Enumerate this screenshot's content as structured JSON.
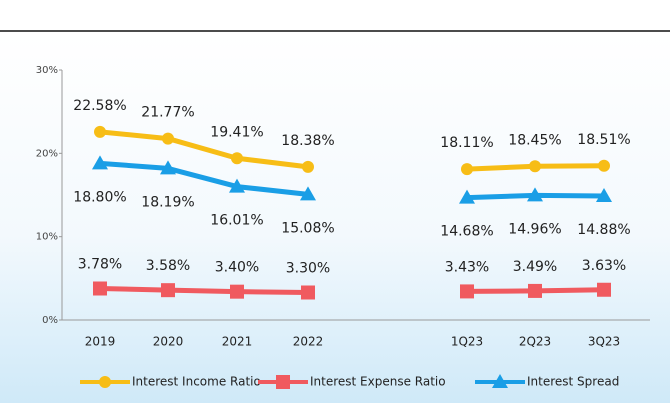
{
  "chart_data": {
    "type": "line",
    "categories": [
      "2019",
      "2020",
      "2021",
      "2022",
      null,
      "1Q23",
      "2Q23",
      "3Q23"
    ],
    "series": [
      {
        "name": "Interest Income Ratio",
        "color": "#f7bd16",
        "marker": "circle",
        "values": [
          22.58,
          21.77,
          19.41,
          18.38,
          null,
          18.11,
          18.45,
          18.51
        ],
        "value_labels": [
          "22.58%",
          "21.77%",
          "19.41%",
          "18.38%",
          null,
          "18.11%",
          "18.45%",
          "18.51%"
        ]
      },
      {
        "name": "Interest Expense Ratio",
        "color": "#f05a5f",
        "marker": "square",
        "values": [
          3.78,
          3.58,
          3.4,
          3.3,
          null,
          3.43,
          3.49,
          3.63
        ],
        "value_labels": [
          "3.78%",
          "3.58%",
          "3.40%",
          "3.30%",
          null,
          "3.43%",
          "3.49%",
          "3.63%"
        ]
      },
      {
        "name": "Interest Spread",
        "color": "#1a9ee6",
        "marker": "triangle",
        "values": [
          18.8,
          18.19,
          16.01,
          15.08,
          null,
          14.68,
          14.96,
          14.88
        ],
        "value_labels": [
          "18.80%",
          "18.19%",
          "16.01%",
          "15.08%",
          null,
          "14.68%",
          "14.96%",
          "14.88%"
        ]
      }
    ],
    "ylim": [
      0,
      30
    ],
    "yticks": [
      {
        "value": 0,
        "label": "0%"
      },
      {
        "value": 10,
        "label": "10%"
      },
      {
        "value": 20,
        "label": "20%"
      },
      {
        "value": 30,
        "label": "30%"
      }
    ],
    "legend": "bottom"
  }
}
